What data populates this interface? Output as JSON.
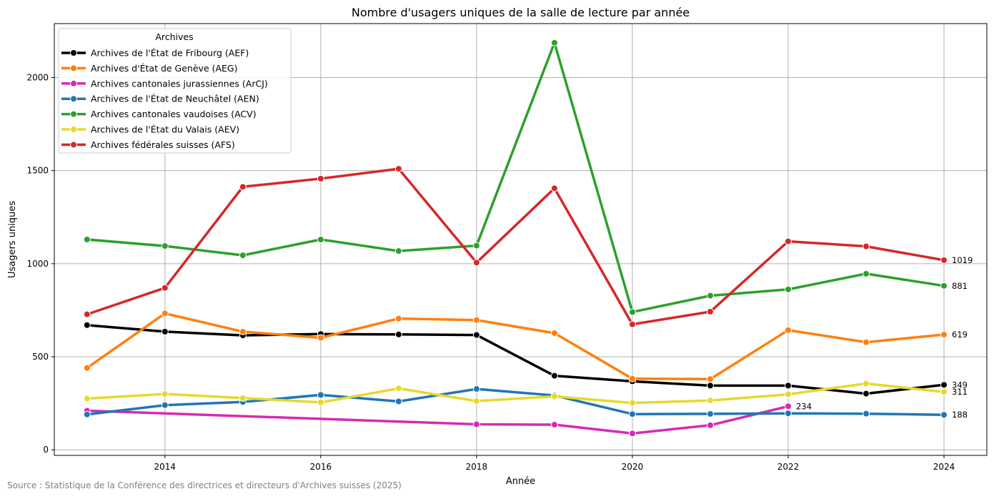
{
  "chart_data": {
    "type": "line",
    "title": "Nombre d'usagers uniques de la salle de lecture par année",
    "xlabel": "Année",
    "ylabel": "Usagers uniques",
    "xlim": [
      2012.58,
      2024.55
    ],
    "ylim": [
      -30,
      2290
    ],
    "xticks": [
      2014,
      2016,
      2018,
      2020,
      2022,
      2024
    ],
    "yticks": [
      0,
      500,
      1000,
      1500,
      2000
    ],
    "grid": true,
    "legend": {
      "title": "Archives",
      "placement": "top-left"
    },
    "x": [
      2013,
      2014,
      2015,
      2016,
      2017,
      2018,
      2019,
      2020,
      2021,
      2022,
      2023,
      2024
    ],
    "series": [
      {
        "name": "Archives de l'État de Fribourg (AEF)",
        "color": "#000000",
        "x": [
          2013,
          2014,
          2015,
          2016,
          2017,
          2018,
          2019,
          2020,
          2021,
          2022,
          2023,
          2024
        ],
        "values": [
          670,
          635,
          615,
          622,
          620,
          617,
          398,
          368,
          345,
          345,
          302,
          349
        ],
        "end_label": "349"
      },
      {
        "name": "Archives d'État de Genève (AEG)",
        "color": "#ff7f0e",
        "x": [
          2013,
          2014,
          2015,
          2016,
          2017,
          2018,
          2019,
          2020,
          2021,
          2022,
          2023,
          2024
        ],
        "values": [
          440,
          733,
          635,
          602,
          705,
          697,
          627,
          382,
          380,
          643,
          578,
          619
        ],
        "end_label": "619"
      },
      {
        "name": "Archives cantonales jurassiennes (ArCJ)",
        "color": "#d62ab4",
        "x": [
          2013,
          2018,
          2019,
          2020,
          2021,
          2022
        ],
        "values": [
          210,
          137,
          135,
          88,
          132,
          234
        ],
        "end_label": "234"
      },
      {
        "name": "Archives de l'État de Neuchâtel (AEN)",
        "color": "#1f77b4",
        "x": [
          2013,
          2014,
          2015,
          2016,
          2017,
          2018,
          2019,
          2020,
          2021,
          2022,
          2023,
          2024
        ],
        "values": [
          190,
          240,
          257,
          295,
          260,
          327,
          292,
          192,
          193,
          196,
          194,
          188
        ],
        "end_label": "188"
      },
      {
        "name": "Archives cantonales vaudoises (ACV)",
        "color": "#2ca02c",
        "x": [
          2013,
          2014,
          2015,
          2016,
          2017,
          2018,
          2019,
          2020,
          2021,
          2022,
          2023,
          2024
        ],
        "values": [
          1130,
          1095,
          1045,
          1130,
          1068,
          1097,
          2187,
          740,
          828,
          862,
          946,
          881
        ],
        "end_label": "881"
      },
      {
        "name": "Archives de l'État du Valais (AEV)",
        "color": "#e6d82e",
        "x": [
          2013,
          2014,
          2015,
          2016,
          2017,
          2018,
          2019,
          2020,
          2021,
          2022,
          2023,
          2024
        ],
        "values": [
          275,
          300,
          278,
          255,
          330,
          262,
          287,
          252,
          265,
          298,
          356,
          311
        ],
        "end_label": "311"
      },
      {
        "name": "Archives fédérales suisses (AFS)",
        "color": "#d62728",
        "x": [
          2013,
          2014,
          2015,
          2016,
          2017,
          2018,
          2019,
          2020,
          2021,
          2022,
          2023,
          2024
        ],
        "values": [
          728,
          870,
          1413,
          1457,
          1510,
          1006,
          1405,
          674,
          742,
          1120,
          1093,
          1019
        ],
        "end_label": "1019"
      }
    ]
  },
  "source": "Source : Statistique de la Conférence des directrices et directeurs d'Archives suisses (2025)"
}
